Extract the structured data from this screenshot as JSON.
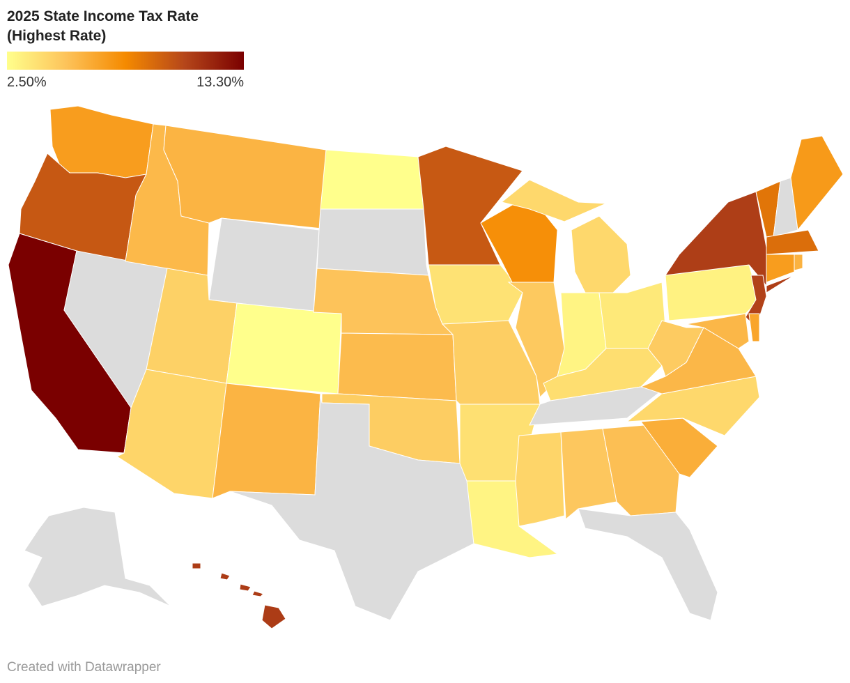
{
  "chart_data": {
    "type": "choropleth",
    "title": "2025 State Income Tax Rate (Highest Rate)",
    "legend": {
      "min": {
        "value": 2.5,
        "label": "2.50%"
      },
      "max": {
        "value": 13.3,
        "label": "13.30%"
      },
      "colors": [
        "#ffff8c",
        "#fdc35a",
        "#f58a00",
        "#b5461a",
        "#7a0000"
      ]
    },
    "no_data_color": "#dcdcdc",
    "values": [
      7,
      9.9,
      13.3,
      null,
      5.695,
      5.9,
      null,
      4.55,
      2.5,
      4.4,
      5.9,
      2.5,
      null,
      5.2,
      5.58,
      4.75,
      null,
      9.85,
      3.8,
      4.7,
      3.9,
      3.0,
      7.65,
      4.95,
      4.25,
      3.0,
      3.5,
      4.0,
      null,
      4.4,
      5,
      5.39,
      null,
      6.2,
      4.25,
      5.75,
      4.82,
      3.07,
      10.9,
      10.75,
      5.75,
      6.6,
      8.75,
      null,
      7.15,
      9,
      6.99,
      5.99,
      null,
      11
    ],
    "footer": "Created with Datawrapper"
  }
}
